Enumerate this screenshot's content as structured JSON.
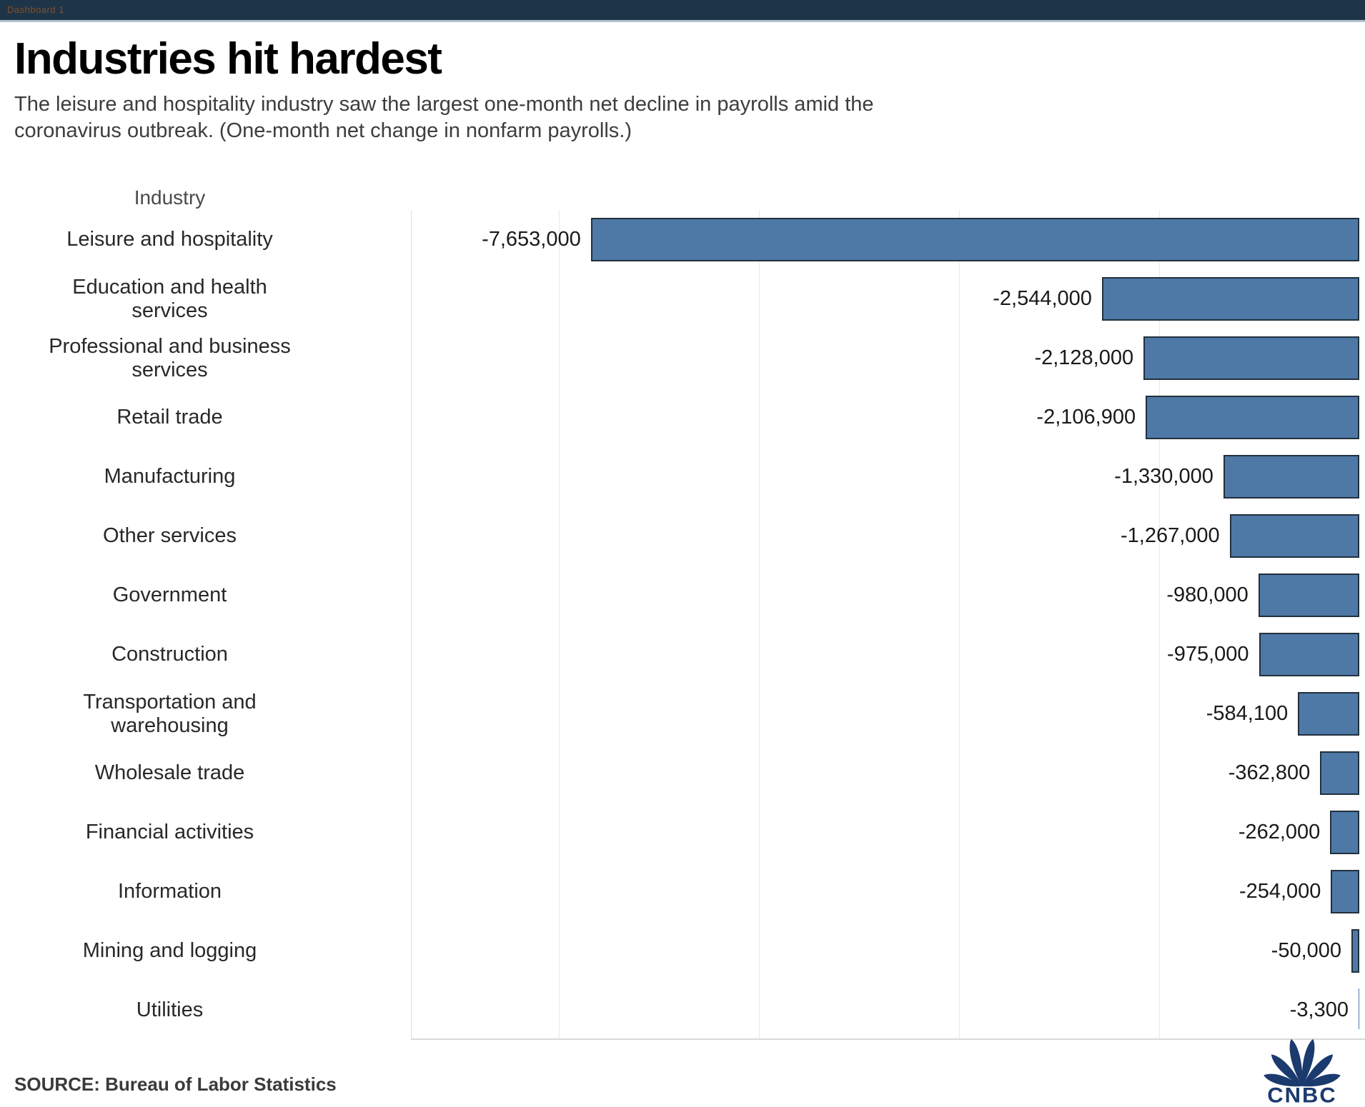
{
  "topbar": {
    "tab_label": "Dashboard 1"
  },
  "header": {
    "title": "Industries hit hardest",
    "subtitle": "The leisure and hospitality industry saw the largest one-month net decline in payrolls amid the\ncoronavirus outbreak. (One-month net change in nonfarm payrolls.)"
  },
  "chart_data": {
    "type": "bar",
    "orientation": "horizontal",
    "column_header": "Industry",
    "categories": [
      "Leisure and hospitality",
      "Education and health\nservices",
      "Professional and business\nservices",
      "Retail trade",
      "Manufacturing",
      "Other services",
      "Government",
      "Construction",
      "Transportation and\nwarehousing",
      "Wholesale trade",
      "Financial activities",
      "Information",
      "Mining and logging",
      "Utilities"
    ],
    "values": [
      -7653000,
      -2544000,
      -2128000,
      -2106900,
      -1330000,
      -1267000,
      -980000,
      -975000,
      -584100,
      -362800,
      -262000,
      -254000,
      -50000,
      -3300
    ],
    "value_labels": [
      "-7,653,000",
      "-2,544,000",
      "-2,128,000",
      "-2,106,900",
      "-1,330,000",
      "-1,267,000",
      "-980,000",
      "-975,000",
      "-584,100",
      "-362,800",
      "-262,000",
      "-254,000",
      "-50,000",
      "-3,300"
    ],
    "axis": {
      "min": -9480000,
      "max": 0,
      "gridline_interval": 2000000,
      "gridlines_at": [
        -2000000,
        -4000000,
        -6000000,
        -8000000
      ]
    },
    "grid": true,
    "legend": false,
    "bars_anchored": "right",
    "colors": {
      "bar_fill": "#4e79a7",
      "bar_border": "#22303d"
    }
  },
  "footer": {
    "source": "SOURCE: Bureau of Labor Statistics",
    "logo_text": "CNBC"
  },
  "colors": {
    "topbar_bg": "#1e3449",
    "topbar_tab_text": "#82512c",
    "logo_navy": "#1b3a6e"
  }
}
